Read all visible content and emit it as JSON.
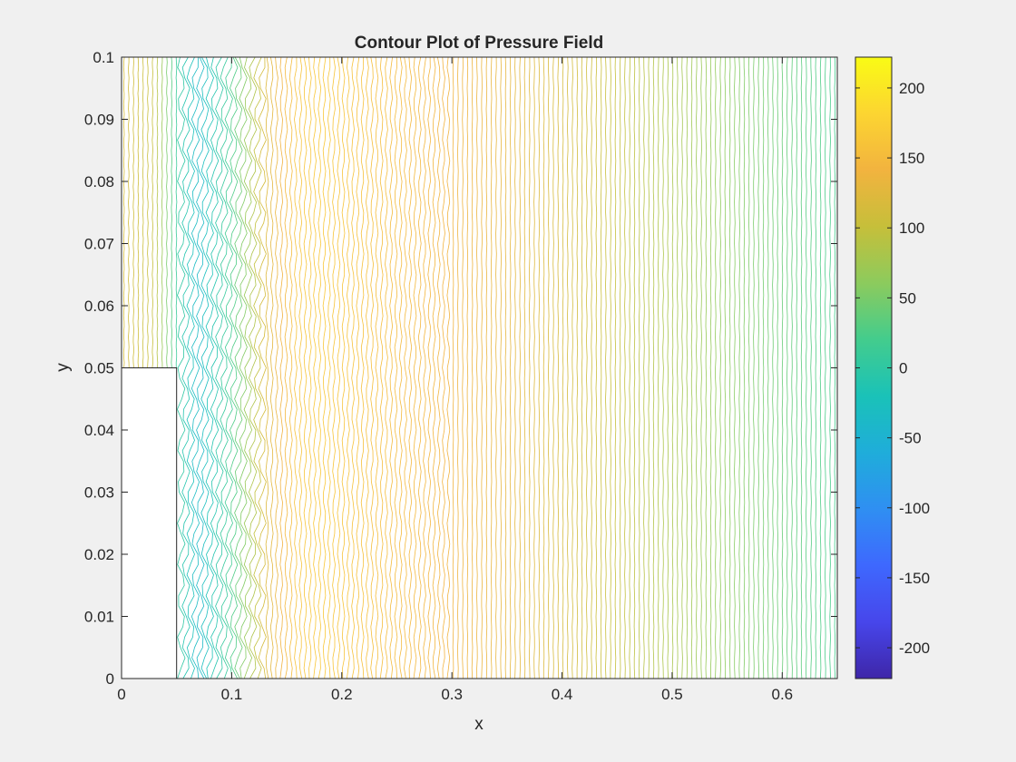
{
  "chart_data": {
    "type": "contour",
    "title": "Contour Plot of Pressure Field",
    "xlabel": "x",
    "ylabel": "y",
    "xlim": [
      0,
      0.65
    ],
    "ylim": [
      0,
      0.1
    ],
    "xticks": [
      0,
      0.1,
      0.2,
      0.3,
      0.4,
      0.5,
      0.6
    ],
    "xtick_labels": [
      "0",
      "0.1",
      "0.2",
      "0.3",
      "0.4",
      "0.5",
      "0.6"
    ],
    "yticks": [
      0,
      0.01,
      0.02,
      0.03,
      0.04,
      0.05,
      0.06,
      0.07,
      0.08,
      0.09,
      0.1
    ],
    "ytick_labels": [
      "0",
      "0.01",
      "0.02",
      "0.03",
      "0.04",
      "0.05",
      "0.06",
      "0.07",
      "0.08",
      "0.09",
      "0.1"
    ],
    "grid": false,
    "colormap": "parula",
    "clim": [
      -222,
      222
    ],
    "colorbar_ticks": [
      -200,
      -150,
      -100,
      -50,
      0,
      50,
      100,
      150,
      200
    ],
    "colorbar_tick_labels": [
      "-200",
      "-150",
      "-100",
      "-50",
      "0",
      "50",
      "100",
      "150",
      "200"
    ],
    "obstacle": {
      "x": [
        0,
        0.05
      ],
      "y": [
        0,
        0.05
      ]
    },
    "pressure_profile_along_x": {
      "x": [
        0,
        0.03,
        0.05,
        0.07,
        0.1,
        0.13,
        0.16,
        0.18,
        0.2,
        0.25,
        0.3,
        0.35,
        0.4,
        0.45,
        0.5,
        0.55,
        0.6,
        0.65
      ],
      "p": [
        115,
        100,
        10,
        -40,
        20,
        120,
        160,
        165,
        160,
        150,
        140,
        130,
        115,
        100,
        80,
        60,
        40,
        20
      ]
    },
    "contour_levels": 150
  },
  "colors": {
    "background": "#f0f0f0",
    "axes_background": "#ffffff",
    "axis_line": "#262626",
    "parula": [
      "#3e26a8",
      "#4746eb",
      "#3e68fe",
      "#2f8ff2",
      "#1fadda",
      "#1ac2b8",
      "#43cc8d",
      "#8ccb5d",
      "#c6bf3a",
      "#f2b33f",
      "#fcd531",
      "#f9fb15"
    ]
  }
}
